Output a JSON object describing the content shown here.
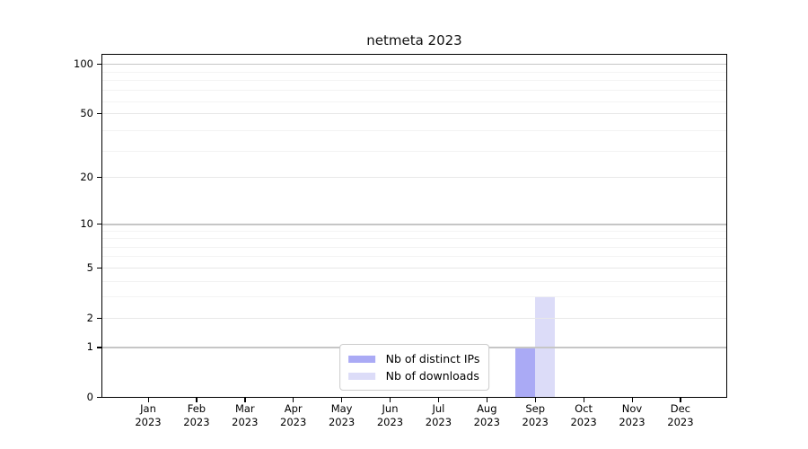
{
  "page": {
    "background": "#ffffff"
  },
  "chart_data": {
    "type": "bar",
    "title": "netmeta 2023",
    "categories": [
      "Jan 2023",
      "Feb 2023",
      "Mar 2023",
      "Apr 2023",
      "May 2023",
      "Jun 2023",
      "Jul 2023",
      "Aug 2023",
      "Sep 2023",
      "Oct 2023",
      "Nov 2023",
      "Dec 2023"
    ],
    "series": [
      {
        "name": "Nb of distinct IPs",
        "color": "#aaaaf5",
        "values": [
          0,
          0,
          0,
          0,
          0,
          0,
          0,
          0,
          1,
          0,
          0,
          0
        ]
      },
      {
        "name": "Nb of downloads",
        "color": "#dcdcf8",
        "values": [
          0,
          0,
          0,
          0,
          0,
          0,
          0,
          0,
          3,
          0,
          0,
          0
        ]
      }
    ],
    "yscale": "log1p",
    "ylim": [
      0,
      113
    ],
    "y_ticks": [
      0,
      1,
      2,
      5,
      10,
      20,
      50,
      100
    ],
    "y_minor_gridlines": [
      3,
      4,
      6,
      7,
      8,
      9,
      29,
      39,
      59,
      69,
      79,
      89
    ],
    "xlabel": "",
    "ylabel": "",
    "grid": "horizontal",
    "legend": {
      "position": "lower-center-inside",
      "items": [
        "Nb of distinct IPs",
        "Nb of downloads"
      ]
    },
    "colors": {
      "spine": "#000000",
      "grid_decade": "#c6c6c6",
      "grid_major": "#e8e8e8",
      "grid_minor": "#f2f2f2",
      "legend_border": "#cccccc"
    }
  }
}
